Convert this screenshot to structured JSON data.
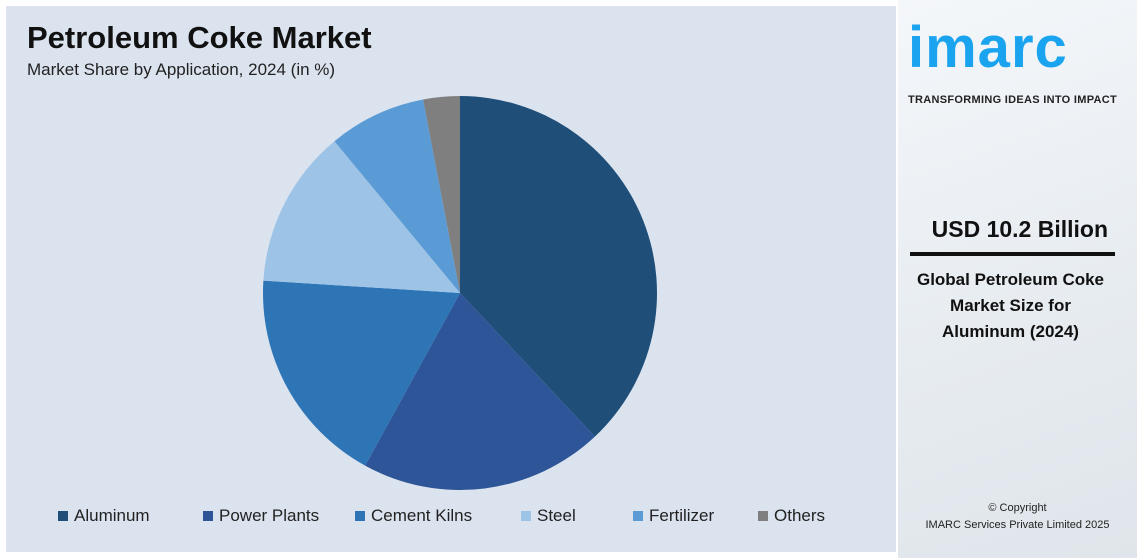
{
  "chart_data": {
    "type": "pie",
    "title": "Petroleum Coke Market",
    "subtitle": "Market Share by Application, 2024 (in %)",
    "categories": [
      "Aluminum",
      "Power Plants",
      "Cement Kilns",
      "Steel",
      "Fertilizer",
      "Others"
    ],
    "values": [
      38,
      20,
      18,
      13,
      8,
      3
    ],
    "colors": [
      "#1f4e79",
      "#2e5597",
      "#2e75b6",
      "#9dc3e6",
      "#5b9bd5",
      "#7f7f7f"
    ],
    "legend_position": "bottom"
  },
  "sidebar": {
    "logo": "imarc",
    "tagline": "TRANSFORMING IDEAS INTO IMPACT",
    "value": "USD 10.2 Billion",
    "description": "Global Petroleum Coke Market Size for Aluminum (2024)",
    "copyright": "© Copyright",
    "company": "IMARC Services Private Limited 2025",
    "brand_color": "#1aa3ee"
  }
}
